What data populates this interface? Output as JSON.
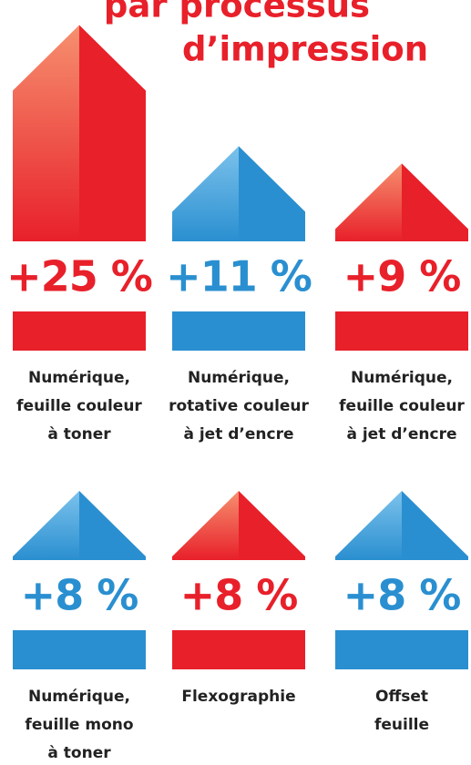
{
  "chart_data": {
    "type": "bar",
    "title": [
      "par processus",
      "d’impression"
    ],
    "categories": [
      [
        "Numérique,",
        "feuille couleur",
        "à toner"
      ],
      [
        "Numérique,",
        "rotative couleur",
        "à jet d’encre"
      ],
      [
        "Numérique,",
        "feuille couleur",
        "à jet d’encre"
      ],
      [
        "Numérique,",
        "feuille mono",
        "à toner"
      ],
      [
        "Flexographie"
      ],
      [
        "Offset",
        "feuille"
      ]
    ],
    "values": [
      25,
      11,
      9,
      8,
      8,
      8
    ],
    "value_labels": [
      "+25 %",
      "+11 %",
      "+9 %",
      "+8 %",
      "+8 %",
      "+8 %"
    ],
    "colors": [
      "#e8202a",
      "#2a8fd0",
      "#e8202a",
      "#2a8fd0",
      "#e8202a",
      "#2a8fd0"
    ]
  }
}
